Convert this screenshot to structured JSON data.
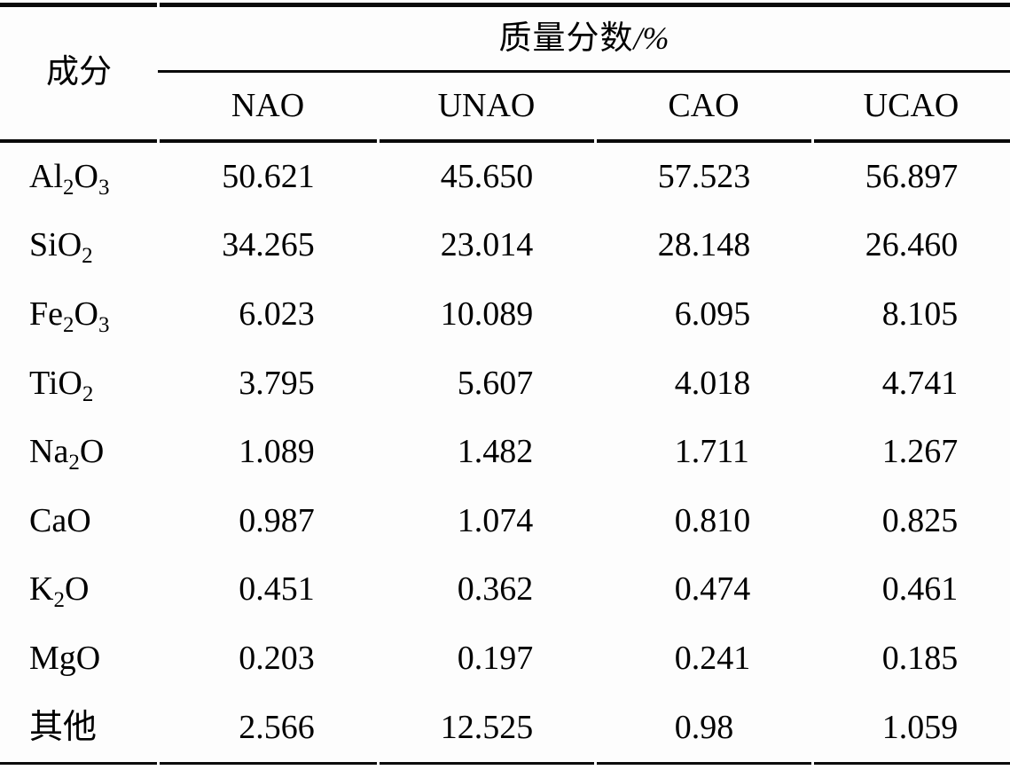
{
  "table": {
    "component_header": "成分",
    "group_header": {
      "label": "质量分数",
      "unit": "/%"
    },
    "sample_columns": [
      "NAO",
      "UNAO",
      "CAO",
      "UCAO"
    ],
    "rows": [
      {
        "component": [
          "Al",
          {
            "sub": "2"
          },
          "O",
          {
            "sub": "3"
          }
        ],
        "values": [
          "50.621",
          "45.650",
          "57.523",
          "56.897"
        ]
      },
      {
        "component": [
          "SiO",
          {
            "sub": "2"
          }
        ],
        "values": [
          "34.265",
          "23.014",
          "28.148",
          "26.460"
        ]
      },
      {
        "component": [
          "Fe",
          {
            "sub": "2"
          },
          "O",
          {
            "sub": "3"
          }
        ],
        "values": [
          "6.023",
          "10.089",
          "6.095",
          "8.105"
        ]
      },
      {
        "component": [
          "TiO",
          {
            "sub": "2"
          }
        ],
        "values": [
          "3.795",
          "5.607",
          "4.018",
          "4.741"
        ]
      },
      {
        "component": [
          "Na",
          {
            "sub": "2"
          },
          "O"
        ],
        "values": [
          "1.089",
          "1.482",
          "1.711",
          "1.267"
        ]
      },
      {
        "component": [
          "CaO"
        ],
        "values": [
          "0.987",
          "1.074",
          "0.810",
          "0.825"
        ]
      },
      {
        "component": [
          "K",
          {
            "sub": "2"
          },
          "O"
        ],
        "values": [
          "0.451",
          "0.362",
          "0.474",
          "0.461"
        ]
      },
      {
        "component": [
          "MgO"
        ],
        "values": [
          "0.203",
          "0.197",
          "0.241",
          "0.185"
        ]
      },
      {
        "component": [
          "其他"
        ],
        "values": [
          "2.566",
          "12.525",
          "0.98",
          "1.059"
        ]
      }
    ],
    "colors": {
      "rule": "#0a0a0a",
      "background": "#fdfdfd",
      "text": "#000000"
    }
  }
}
